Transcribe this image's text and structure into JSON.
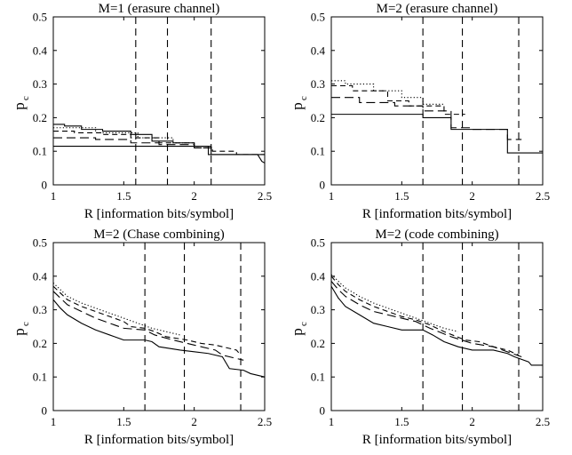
{
  "chart_data": [
    {
      "type": "line",
      "title": "M=1 (erasure channel)",
      "xlabel": "R [information bits/symbol]",
      "ylabel": "p",
      "ylabel_subscript": "c",
      "xlim": [
        1,
        2.5
      ],
      "ylim": [
        0,
        0.5
      ],
      "xticks": [
        1,
        1.5,
        2,
        2.5
      ],
      "xticklabels": [
        "1",
        "1.5",
        "2",
        "2.5"
      ],
      "yticks": [
        0,
        0.1,
        0.2,
        0.3,
        0.4,
        0.5
      ],
      "yticklabels": [
        "0",
        "0.1",
        "0.2",
        "0.3",
        "0.4",
        "0.5"
      ],
      "vlines": [
        1.585,
        1.81,
        2.12
      ],
      "series": [
        {
          "style": "solid",
          "x": [
            1,
            1.08,
            1.08,
            1.2,
            1.2,
            1.35,
            1.35,
            1.55,
            1.55,
            1.7,
            1.7,
            1.85,
            1.85,
            2.0,
            2.0,
            2.1,
            2.1,
            2.3,
            2.3,
            2.45,
            2.48,
            2.5
          ],
          "y": [
            0.18,
            0.18,
            0.175,
            0.175,
            0.165,
            0.165,
            0.16,
            0.16,
            0.15,
            0.15,
            0.13,
            0.13,
            0.125,
            0.125,
            0.115,
            0.115,
            0.09,
            0.09,
            0.09,
            0.09,
            0.07,
            0.065
          ]
        },
        {
          "style": "dotted",
          "x": [
            1,
            1.3,
            1.3,
            1.6,
            1.6,
            1.85,
            1.85,
            2.0
          ],
          "y": [
            0.17,
            0.17,
            0.155,
            0.155,
            0.14,
            0.14,
            0.125,
            0.125
          ]
        },
        {
          "style": "dash",
          "x": [
            1,
            1.15,
            1.15,
            1.35,
            1.35,
            1.55,
            1.55,
            1.75,
            1.75,
            2.0,
            2.0,
            2.13,
            2.13,
            2.3,
            2.3,
            2.5
          ],
          "y": [
            0.16,
            0.16,
            0.155,
            0.155,
            0.15,
            0.15,
            0.14,
            0.14,
            0.125,
            0.125,
            0.11,
            0.11,
            0.1,
            0.1,
            0.09,
            0.09
          ]
        },
        {
          "style": "longdash",
          "x": [
            1,
            1.3,
            1.3,
            1.55,
            1.55,
            1.75,
            1.75,
            2.0,
            2.0,
            2.15
          ],
          "y": [
            0.14,
            0.14,
            0.135,
            0.135,
            0.125,
            0.125,
            0.12,
            0.12,
            0.11,
            0.11
          ]
        },
        {
          "style": "solid",
          "x": [
            1,
            2.12,
            2.12,
            2.5
          ],
          "y": [
            0.115,
            0.115,
            0.09,
            0.09
          ]
        }
      ]
    },
    {
      "type": "line",
      "title": "M=2 (erasure channel)",
      "xlabel": "R [information bits/symbol]",
      "ylabel": "p",
      "ylabel_subscript": "c",
      "xlim": [
        1,
        2.5
      ],
      "ylim": [
        0,
        0.5
      ],
      "xticks": [
        1,
        1.5,
        2,
        2.5
      ],
      "xticklabels": [
        "1",
        "1.5",
        "2",
        "2.5"
      ],
      "yticks": [
        0,
        0.1,
        0.2,
        0.3,
        0.4,
        0.5
      ],
      "yticklabels": [
        "0",
        "0.1",
        "0.2",
        "0.3",
        "0.4",
        "0.5"
      ],
      "vlines": [
        1.65,
        1.93,
        2.33
      ],
      "series": [
        {
          "style": "dotted",
          "x": [
            1,
            1.1,
            1.1,
            1.3,
            1.3,
            1.5,
            1.5,
            1.65,
            1.65,
            1.8
          ],
          "y": [
            0.31,
            0.31,
            0.3,
            0.3,
            0.28,
            0.28,
            0.26,
            0.26,
            0.24,
            0.24
          ]
        },
        {
          "style": "dash",
          "x": [
            1,
            1.15,
            1.15,
            1.4,
            1.4,
            1.55,
            1.55,
            1.8,
            1.8,
            1.95
          ],
          "y": [
            0.295,
            0.295,
            0.28,
            0.28,
            0.25,
            0.25,
            0.235,
            0.235,
            0.21,
            0.21
          ]
        },
        {
          "style": "longdash",
          "x": [
            1,
            1.2,
            1.2,
            1.45,
            1.45,
            1.65,
            1.65,
            1.85,
            1.85,
            2.0,
            2.0,
            2.25,
            2.25,
            2.35
          ],
          "y": [
            0.26,
            0.26,
            0.245,
            0.245,
            0.235,
            0.235,
            0.22,
            0.22,
            0.17,
            0.17,
            0.165,
            0.165,
            0.135,
            0.135
          ]
        },
        {
          "style": "solid",
          "x": [
            1,
            1.65,
            1.65,
            1.85,
            1.85,
            2.0,
            2.0,
            2.25,
            2.25,
            2.5
          ],
          "y": [
            0.21,
            0.21,
            0.2,
            0.2,
            0.165,
            0.165,
            0.165,
            0.165,
            0.095,
            0.095
          ]
        }
      ]
    },
    {
      "type": "line",
      "title": "M=2 (Chase combining)",
      "xlabel": "R [information bits/symbol]",
      "ylabel": "p",
      "ylabel_subscript": "c",
      "xlim": [
        1,
        2.5
      ],
      "ylim": [
        0,
        0.5
      ],
      "xticks": [
        1,
        1.5,
        2,
        2.5
      ],
      "xticklabels": [
        "1",
        "1.5",
        "2",
        "2.5"
      ],
      "yticks": [
        0,
        0.1,
        0.2,
        0.3,
        0.4,
        0.5
      ],
      "yticklabels": [
        "0",
        "0.1",
        "0.2",
        "0.3",
        "0.4",
        "0.5"
      ],
      "vlines": [
        1.65,
        1.93,
        2.33
      ],
      "series": [
        {
          "style": "dotted",
          "x": [
            1,
            1.05,
            1.1,
            1.2,
            1.3,
            1.4,
            1.5,
            1.6,
            1.7,
            1.8,
            1.9
          ],
          "y": [
            0.38,
            0.36,
            0.34,
            0.32,
            0.305,
            0.29,
            0.275,
            0.26,
            0.245,
            0.235,
            0.225
          ]
        },
        {
          "style": "dash",
          "x": [
            1,
            1.05,
            1.1,
            1.2,
            1.3,
            1.4,
            1.5,
            1.55,
            1.65,
            1.72,
            1.8,
            1.95,
            2.05,
            2.15,
            2.2,
            2.3,
            2.33
          ],
          "y": [
            0.37,
            0.35,
            0.33,
            0.31,
            0.295,
            0.28,
            0.265,
            0.25,
            0.245,
            0.235,
            0.22,
            0.21,
            0.2,
            0.195,
            0.19,
            0.18,
            0.165
          ]
        },
        {
          "style": "longdash",
          "x": [
            1,
            1.05,
            1.1,
            1.2,
            1.3,
            1.4,
            1.5,
            1.65,
            1.72,
            1.85,
            2.0,
            2.15,
            2.2,
            2.3,
            2.35
          ],
          "y": [
            0.355,
            0.335,
            0.315,
            0.295,
            0.275,
            0.26,
            0.245,
            0.24,
            0.225,
            0.21,
            0.195,
            0.18,
            0.165,
            0.155,
            0.15
          ]
        },
        {
          "style": "solid",
          "x": [
            1,
            1.05,
            1.1,
            1.2,
            1.3,
            1.4,
            1.5,
            1.65,
            1.7,
            1.75,
            1.9,
            2.0,
            2.1,
            2.2,
            2.25,
            2.35,
            2.4,
            2.45,
            2.5
          ],
          "y": [
            0.33,
            0.305,
            0.285,
            0.26,
            0.24,
            0.225,
            0.21,
            0.21,
            0.205,
            0.19,
            0.18,
            0.175,
            0.17,
            0.16,
            0.125,
            0.12,
            0.11,
            0.105,
            0.1
          ]
        }
      ]
    },
    {
      "type": "line",
      "title": "M=2 (code combining)",
      "xlabel": "R [information bits/symbol]",
      "ylabel": "p",
      "ylabel_subscript": "c",
      "xlim": [
        1,
        2.5
      ],
      "ylim": [
        0,
        0.5
      ],
      "xticks": [
        1,
        1.5,
        2,
        2.5
      ],
      "xticklabels": [
        "1",
        "1.5",
        "2",
        "2.5"
      ],
      "yticks": [
        0,
        0.1,
        0.2,
        0.3,
        0.4,
        0.5
      ],
      "yticklabels": [
        "0",
        "0.1",
        "0.2",
        "0.3",
        "0.4",
        "0.5"
      ],
      "vlines": [
        1.65,
        1.93,
        2.33
      ],
      "series": [
        {
          "style": "dotted",
          "x": [
            1,
            1.05,
            1.1,
            1.2,
            1.3,
            1.4,
            1.5,
            1.6,
            1.7,
            1.8,
            1.9
          ],
          "y": [
            0.405,
            0.385,
            0.365,
            0.34,
            0.32,
            0.305,
            0.29,
            0.275,
            0.26,
            0.245,
            0.235
          ]
        },
        {
          "style": "dash",
          "x": [
            1,
            1.05,
            1.1,
            1.2,
            1.3,
            1.4,
            1.5,
            1.6,
            1.7,
            1.8,
            1.95,
            2.05,
            2.15,
            2.25,
            2.33
          ],
          "y": [
            0.4,
            0.375,
            0.355,
            0.33,
            0.31,
            0.295,
            0.28,
            0.27,
            0.255,
            0.235,
            0.21,
            0.205,
            0.19,
            0.18,
            0.165
          ]
        },
        {
          "style": "longdash",
          "x": [
            1,
            1.05,
            1.1,
            1.2,
            1.3,
            1.4,
            1.5,
            1.6,
            1.7,
            1.85,
            2.0,
            2.15,
            2.25,
            2.35
          ],
          "y": [
            0.385,
            0.36,
            0.34,
            0.315,
            0.295,
            0.285,
            0.275,
            0.265,
            0.245,
            0.22,
            0.2,
            0.19,
            0.175,
            0.16
          ]
        },
        {
          "style": "solid",
          "x": [
            1,
            1.05,
            1.1,
            1.2,
            1.3,
            1.4,
            1.5,
            1.65,
            1.72,
            1.8,
            1.9,
            2.0,
            2.15,
            2.25,
            2.3,
            2.4,
            2.42,
            2.5
          ],
          "y": [
            0.37,
            0.335,
            0.31,
            0.285,
            0.26,
            0.25,
            0.24,
            0.24,
            0.225,
            0.205,
            0.19,
            0.18,
            0.18,
            0.17,
            0.16,
            0.145,
            0.135,
            0.135
          ]
        }
      ]
    }
  ]
}
